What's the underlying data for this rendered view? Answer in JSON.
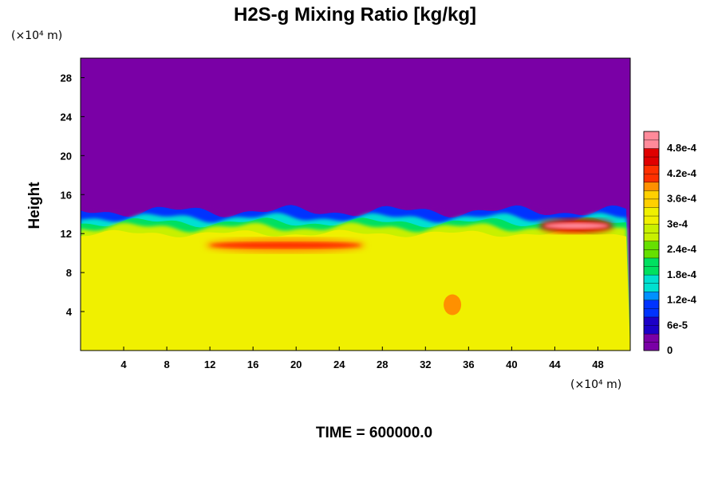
{
  "chart_data": {
    "type": "heatmap",
    "title": "H2S-g Mixing Ratio [kg/kg]",
    "ylabel": "Height",
    "x_unit": "(×10⁴ m)",
    "y_unit": "(×10⁴ m)",
    "xlim": [
      0,
      51
    ],
    "ylim": [
      0,
      30
    ],
    "xticks": [
      4,
      8,
      12,
      16,
      20,
      24,
      28,
      32,
      36,
      40,
      44,
      48
    ],
    "yticks": [
      4,
      8,
      12,
      16,
      20,
      24,
      28
    ],
    "background_value": 0.0,
    "interface_height": 13.8,
    "lower_layer_value": 0.00033,
    "max_value": 0.000518,
    "colorbar": {
      "labels": [
        "0",
        "6e-5",
        "1.2e-4",
        "1.8e-4",
        "2.4e-4",
        "3e-4",
        "3.6e-4",
        "4.2e-4",
        "4.8e-4"
      ],
      "values": [
        0,
        6e-05,
        0.00012,
        0.00018,
        0.00024,
        0.0003,
        0.00036,
        0.00042,
        0.00048
      ],
      "max": 0.00052,
      "colors": [
        "#7a00a6",
        "#1c00c8",
        "#0033ff",
        "#0090ff",
        "#00e0d0",
        "#00e060",
        "#66e000",
        "#c8f000",
        "#f0f000",
        "#ffd000",
        "#ff9000",
        "#ff3000",
        "#e00000",
        "#ff8a9a"
      ]
    },
    "features": [
      {
        "name": "red-streak",
        "x": [
          12,
          26
        ],
        "y": 10.8,
        "value": 0.00044
      },
      {
        "name": "pink-core",
        "x": [
          43,
          49
        ],
        "y": 12.8,
        "value": 0.00051
      },
      {
        "name": "yellow-blob",
        "x": 34.5,
        "y": 4.7,
        "value": 0.00038
      }
    ]
  },
  "time_label": "TIME = 600000.0"
}
